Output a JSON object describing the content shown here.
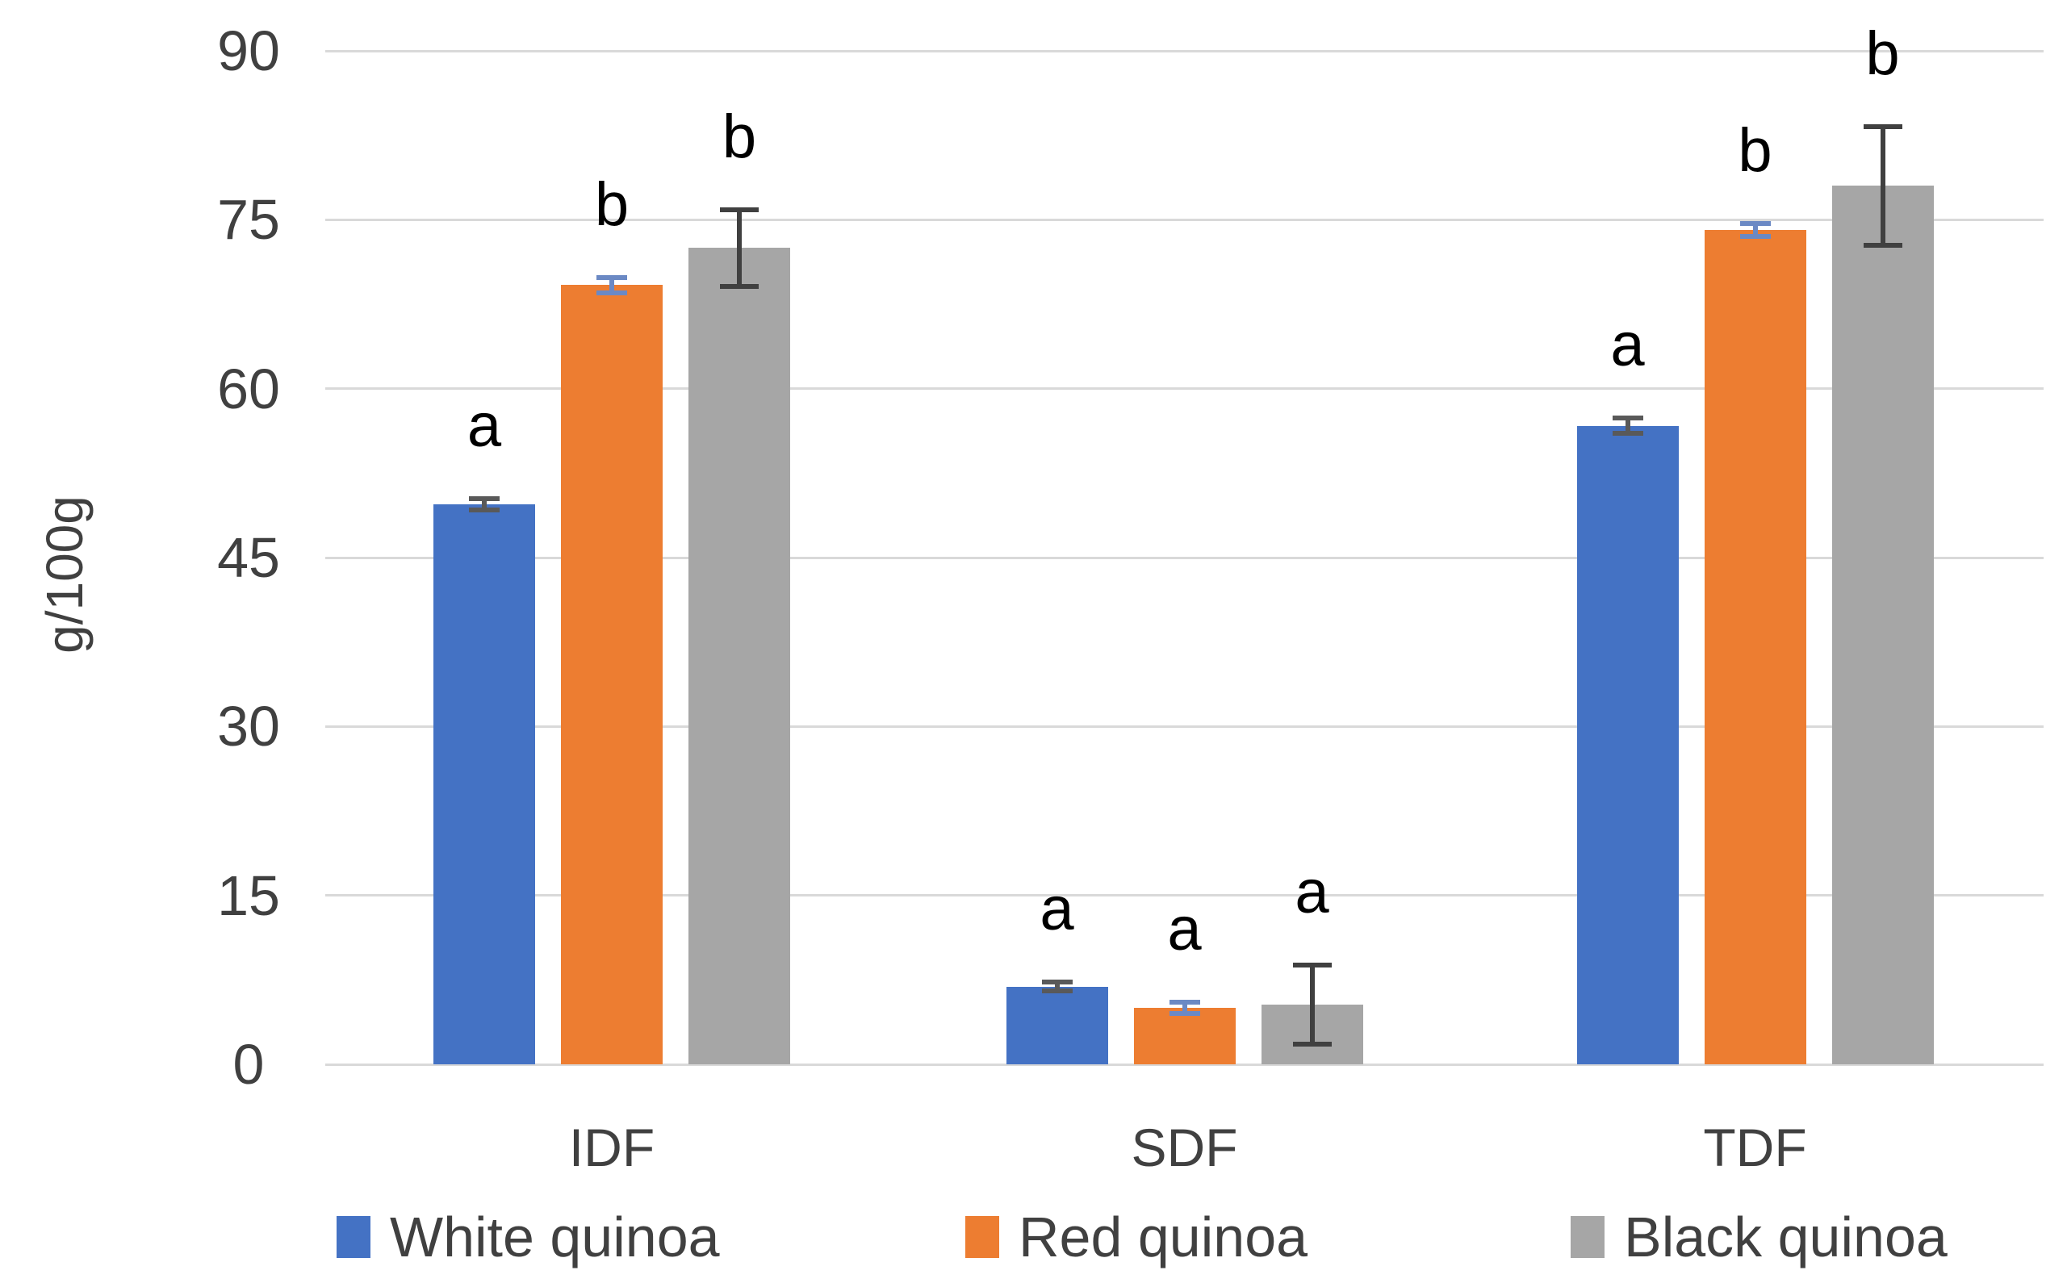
{
  "chart_data": {
    "type": "bar",
    "title": "",
    "xlabel": "",
    "ylabel": "g/100g",
    "categories": [
      "IDF",
      "SDF",
      "TDF"
    ],
    "y_ticks": [
      "0",
      "15",
      "30",
      "45",
      "60",
      "75",
      "90"
    ],
    "ylim": [
      0,
      90
    ],
    "grid": true,
    "legend_position": "bottom",
    "series": [
      {
        "name": "White quinoa",
        "color": "#4472C4",
        "error_color": "#595959",
        "values": [
          49.7,
          6.9,
          56.7
        ],
        "errors": [
          0.5,
          0.4,
          0.7
        ],
        "letters": [
          "a",
          "a",
          "a"
        ]
      },
      {
        "name": "Red quinoa",
        "color": "#ED7D31",
        "error_color": "#6B89C4",
        "values": [
          69.2,
          5.0,
          74.1
        ],
        "errors": [
          0.7,
          0.5,
          0.6
        ],
        "letters": [
          "b",
          "a",
          "b"
        ]
      },
      {
        "name": "Black quinoa",
        "color": "#A6A6A6",
        "error_color": "#404040",
        "values": [
          72.5,
          5.3,
          78.0
        ],
        "errors": [
          3.4,
          3.5,
          5.3
        ],
        "letters": [
          "b",
          "a",
          "b"
        ]
      }
    ]
  }
}
